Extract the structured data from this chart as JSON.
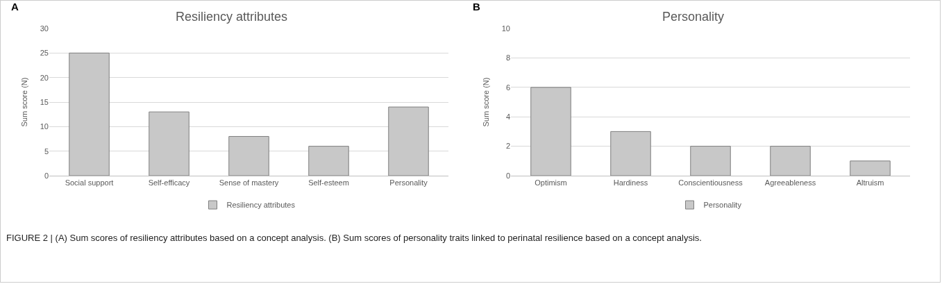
{
  "chart_data": [
    {
      "type": "bar",
      "title": "Resiliency attributes",
      "ylabel": "Sum score (N)",
      "categories": [
        "Social support",
        "Self-efficacy",
        "Sense of mastery",
        "Self-esteem",
        "Personality"
      ],
      "series": [
        {
          "name": "Resiliency attributes",
          "color": "#c8c8c8",
          "values": [
            25,
            13,
            8,
            6,
            14
          ]
        }
      ],
      "ylim": [
        0,
        30
      ],
      "yticks": [
        0,
        5,
        10,
        15,
        20,
        25,
        30
      ],
      "grid": "y",
      "legend": "bottom",
      "annotations": [
        "A",
        "FIGURE 2 | (A) Sum scores of resiliency attributes based on a concept analysis. (B) Sum scores of personality traits linked to perinatal resilience based on a concept analysis."
      ]
    },
    {
      "type": "bar",
      "title": "Personality",
      "ylabel": "Sum score (N)",
      "categories": [
        "Optimism",
        "Hardiness",
        "Conscientiousness",
        "Agreeableness",
        "Altruism"
      ],
      "series": [
        {
          "name": "Personality",
          "color": "#c8c8c8",
          "values": [
            6,
            3,
            2,
            2,
            1
          ]
        }
      ],
      "ylim": [
        0,
        10
      ],
      "yticks": [
        0,
        2,
        4,
        6,
        8,
        10
      ],
      "grid": "y",
      "legend": "bottom",
      "annotations": [
        "B"
      ]
    }
  ]
}
